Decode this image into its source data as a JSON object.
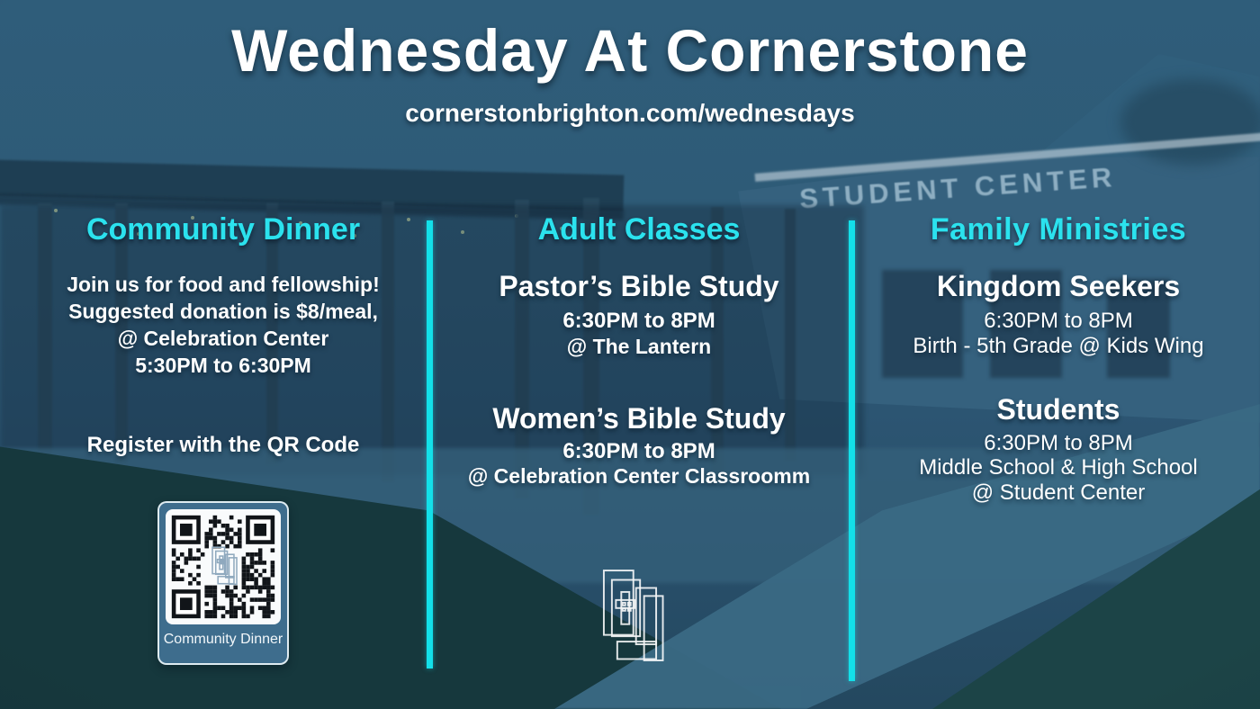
{
  "page": {
    "title": "Wednesday At Cornerstone",
    "url": "cornerstonbrighton.com/wednesdays"
  },
  "background": {
    "building_sign": "STUDENT CENTER"
  },
  "colors": {
    "accent_cyan": "#13e0e9",
    "heading_cyan": "#2be2ee",
    "background_blue": "#2e5b77",
    "grass_green": "#16383d",
    "qr_card_blue": "#3e6d8d"
  },
  "columns": [
    {
      "id": "community-dinner",
      "heading": "Community Dinner",
      "description_lines": [
        "Join us for food and fellowship!",
        "Suggested donation is $8/meal,",
        "@ Celebration Center",
        "5:30PM to 6:30PM"
      ],
      "register_prompt": "Register with the QR Code",
      "qr_label": "Community Dinner"
    },
    {
      "id": "adult-classes",
      "heading": "Adult Classes",
      "events": [
        {
          "name": "Pastor’s Bible Study",
          "time": "6:30PM to 8PM",
          "location": "@ The Lantern"
        },
        {
          "name": "Women’s Bible Study",
          "time": "6:30PM to 8PM",
          "location": "@ Celebration Center Classroomm"
        }
      ]
    },
    {
      "id": "family-ministries",
      "heading": "Family Ministries",
      "events": [
        {
          "name": "Kingdom Seekers",
          "time": "6:30PM to 8PM",
          "location": "Birth - 5th Grade @ Kids Wing"
        },
        {
          "name": "Students",
          "time": "6:30PM to 8PM",
          "location": "Middle School & High School",
          "location2": "@ Student Center"
        }
      ]
    }
  ]
}
